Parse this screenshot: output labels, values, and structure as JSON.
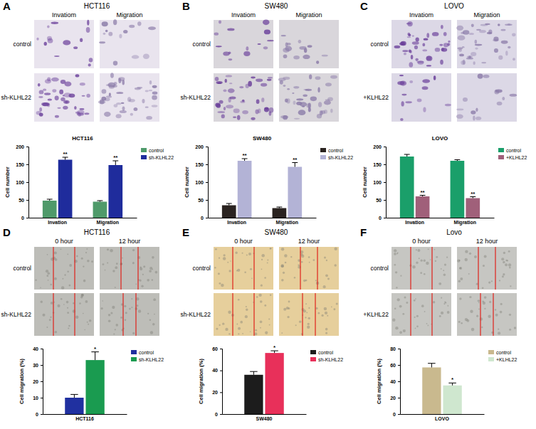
{
  "panels": [
    {
      "letter": "A",
      "title": "HCT116",
      "columns": [
        "Invatiom",
        "Migration"
      ],
      "rows": [
        "control",
        "sh-KLHL22"
      ]
    },
    {
      "letter": "B",
      "title": "SW480",
      "columns": [
        "Invatiom",
        "Migration"
      ],
      "rows": [
        "control",
        "sh-KLHL22"
      ]
    },
    {
      "letter": "C",
      "title": "LOVO",
      "columns": [
        "Invatiom",
        "Migration"
      ],
      "rows": [
        "control",
        "+KLHL22"
      ]
    },
    {
      "letter": "D",
      "title": "HCT116",
      "columns": [
        "0 hour",
        "12 hour"
      ],
      "rows": [
        "control",
        "sh-KLHL22"
      ]
    },
    {
      "letter": "E",
      "title": "SW480",
      "columns": [
        "0 hour",
        "12 hour"
      ],
      "rows": [
        "control",
        "sh-KLHL22"
      ]
    },
    {
      "letter": "F",
      "title": "Lovo",
      "columns": [
        "0 hour",
        "12 hour"
      ],
      "rows": [
        "control",
        "+KLHL22"
      ]
    }
  ],
  "chart_data": [
    {
      "type": "bar",
      "title": "HCT116",
      "y_label": "Cell number",
      "categories": [
        "Invation",
        "Migration"
      ],
      "series": [
        {
          "name": "control",
          "color": "#4f9a6a",
          "values": [
            48,
            45
          ],
          "errors": [
            4,
            3
          ]
        },
        {
          "name": "sh-KLHL22",
          "color": "#1f2c9c",
          "values": [
            163,
            148
          ],
          "errors": [
            7,
            12
          ],
          "significance": [
            "**",
            "**"
          ]
        }
      ],
      "ylim": [
        0,
        200
      ],
      "yticks": [
        0,
        50,
        100,
        150,
        200
      ],
      "legend": "right"
    },
    {
      "type": "bar",
      "title": "SW480",
      "y_label": "Cell number",
      "categories": [
        "Invation",
        "Migration"
      ],
      "series": [
        {
          "name": "control",
          "color": "#2a2320",
          "values": [
            35,
            27
          ],
          "errors": [
            5,
            3
          ]
        },
        {
          "name": "sh-KLHL22",
          "color": "#b3b3d6",
          "values": [
            160,
            143
          ],
          "errors": [
            6,
            12
          ],
          "significance": [
            "**",
            "**"
          ]
        }
      ],
      "ylim": [
        0,
        200
      ],
      "yticks": [
        0,
        50,
        100,
        150,
        200
      ],
      "legend": "right"
    },
    {
      "type": "bar",
      "title": "LOVO",
      "y_label": "Cell number",
      "categories": [
        "Invation",
        "Migration"
      ],
      "series": [
        {
          "name": "control",
          "color": "#1a9f6a",
          "values": [
            172,
            160
          ],
          "errors": [
            6,
            3
          ]
        },
        {
          "name": "+KLHL22",
          "color": "#a0607a",
          "values": [
            60,
            55
          ],
          "errors": [
            3,
            4
          ],
          "significance": [
            "**",
            "**"
          ]
        }
      ],
      "ylim": [
        0,
        200
      ],
      "yticks": [
        0,
        50,
        100,
        150,
        200
      ],
      "legend": "right"
    },
    {
      "type": "bar",
      "y_label": "Cell migration (%)",
      "categories": [
        "HCT116"
      ],
      "series": [
        {
          "name": "control",
          "color": "#2030a0",
          "values": [
            10
          ],
          "errors": [
            2
          ]
        },
        {
          "name": "sh-KLHL22",
          "color": "#1a9b50",
          "values": [
            33
          ],
          "errors": [
            5
          ],
          "significance": [
            "*"
          ]
        }
      ],
      "ylim": [
        0,
        40
      ],
      "yticks": [
        0,
        10,
        20,
        30,
        40
      ],
      "legend": "right"
    },
    {
      "type": "bar",
      "y_label": "Cell migration (%)",
      "categories": [
        "SW480"
      ],
      "series": [
        {
          "name": "control",
          "color": "#1c1c1c",
          "values": [
            36
          ],
          "errors": [
            3
          ]
        },
        {
          "name": "sh-KLHL22",
          "color": "#e8305a",
          "values": [
            56
          ],
          "errors": [
            2
          ],
          "significance": [
            "*"
          ]
        }
      ],
      "ylim": [
        0,
        60
      ],
      "yticks": [
        0,
        20,
        40,
        60
      ],
      "legend": "right"
    },
    {
      "type": "bar",
      "y_label": "Cell migration (%)",
      "categories": [
        "LOVO"
      ],
      "series": [
        {
          "name": "control",
          "color": "#c9b98e",
          "values": [
            57
          ],
          "errors": [
            5
          ]
        },
        {
          "name": "+KLHL22",
          "color": "#cfe7cf",
          "values": [
            35
          ],
          "errors": [
            3
          ],
          "significance": [
            "*"
          ]
        }
      ],
      "ylim": [
        0,
        80
      ],
      "yticks": [
        0,
        20,
        40,
        60,
        80
      ],
      "legend": "right"
    }
  ]
}
